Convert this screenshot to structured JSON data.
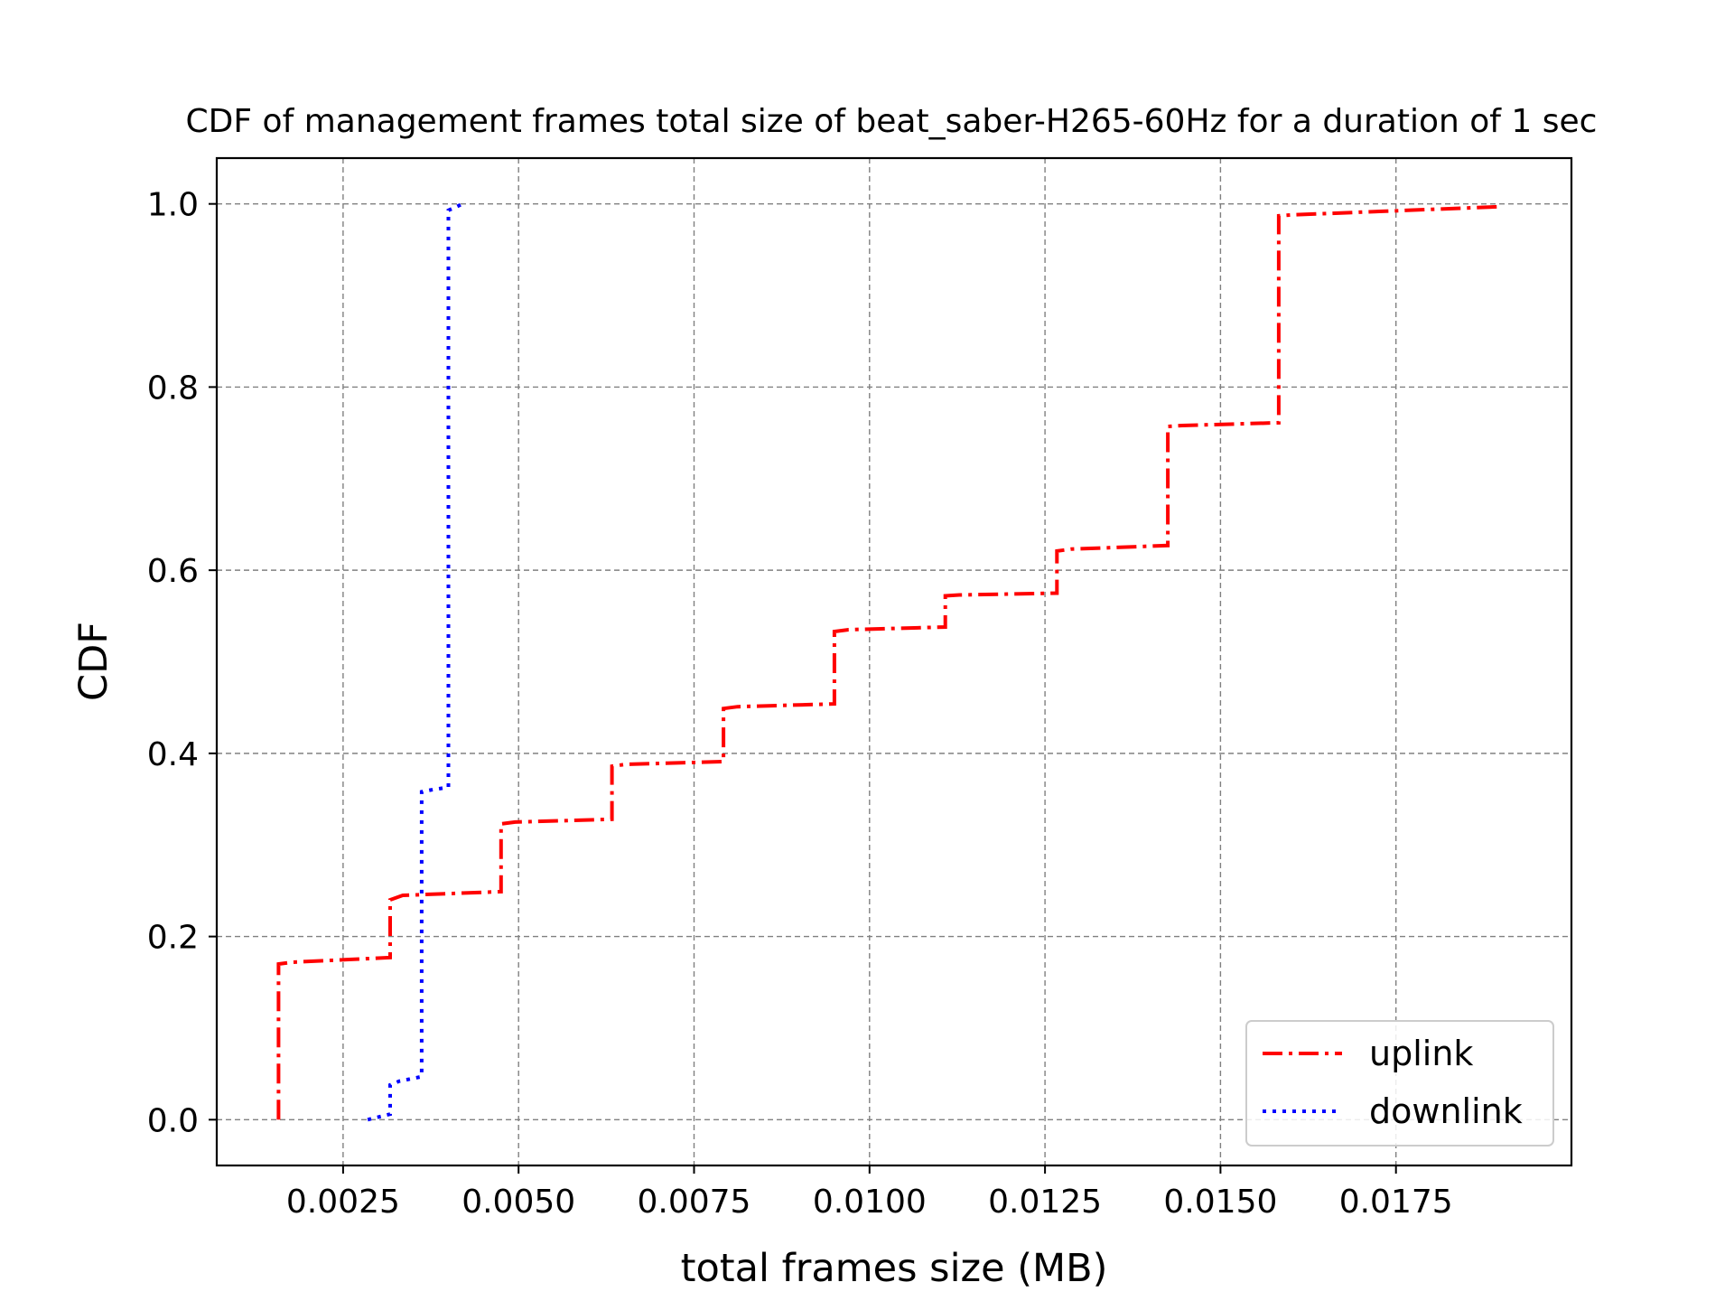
{
  "chart_data": {
    "type": "line",
    "title": "CDF of management frames total size of beat_saber-H265-60Hz for a duration of 1 sec",
    "xlabel": "total frames size (MB)",
    "ylabel": "CDF",
    "xlim": [
      0.0007,
      0.02
    ],
    "ylim": [
      -0.05,
      1.05
    ],
    "xticks": [
      0.0025,
      0.005,
      0.0075,
      0.01,
      0.0125,
      0.015,
      0.0175
    ],
    "xtick_labels": [
      "0.0025",
      "0.0050",
      "0.0075",
      "0.0100",
      "0.0125",
      "0.0150",
      "0.0175"
    ],
    "yticks": [
      0.0,
      0.2,
      0.4,
      0.6,
      0.8,
      1.0
    ],
    "ytick_labels": [
      "0.0",
      "0.2",
      "0.4",
      "0.6",
      "0.8",
      "1.0"
    ],
    "grid": true,
    "legend_position": "lower right",
    "series": [
      {
        "name": "uplink",
        "color": "#ff0000",
        "style": "dashdot",
        "points": [
          [
            0.00158,
            0.0
          ],
          [
            0.00158,
            0.17
          ],
          [
            0.00178,
            0.172
          ],
          [
            0.00317,
            0.177
          ],
          [
            0.00317,
            0.24
          ],
          [
            0.00335,
            0.245
          ],
          [
            0.00475,
            0.249
          ],
          [
            0.00475,
            0.323
          ],
          [
            0.00495,
            0.325
          ],
          [
            0.00633,
            0.328
          ],
          [
            0.00633,
            0.386
          ],
          [
            0.00653,
            0.388
          ],
          [
            0.00792,
            0.391
          ],
          [
            0.00792,
            0.449
          ],
          [
            0.00812,
            0.451
          ],
          [
            0.0095,
            0.454
          ],
          [
            0.0095,
            0.533
          ],
          [
            0.0097,
            0.535
          ],
          [
            0.01108,
            0.538
          ],
          [
            0.01108,
            0.572
          ],
          [
            0.01128,
            0.573
          ],
          [
            0.01267,
            0.575
          ],
          [
            0.01267,
            0.621
          ],
          [
            0.01287,
            0.623
          ],
          [
            0.01425,
            0.627
          ],
          [
            0.01425,
            0.757
          ],
          [
            0.01445,
            0.758
          ],
          [
            0.01583,
            0.761
          ],
          [
            0.01583,
            0.987
          ],
          [
            0.01603,
            0.988
          ],
          [
            0.019,
            0.997
          ]
        ]
      },
      {
        "name": "downlink",
        "color": "#0000ff",
        "style": "dotted",
        "points": [
          [
            0.00285,
            0.0
          ],
          [
            0.00317,
            0.006
          ],
          [
            0.00317,
            0.038
          ],
          [
            0.0033,
            0.042
          ],
          [
            0.00362,
            0.047
          ],
          [
            0.00362,
            0.358
          ],
          [
            0.00375,
            0.36
          ],
          [
            0.004,
            0.363
          ],
          [
            0.004,
            0.993
          ],
          [
            0.00412,
            0.997
          ],
          [
            0.0042,
            1.0
          ]
        ]
      }
    ]
  }
}
